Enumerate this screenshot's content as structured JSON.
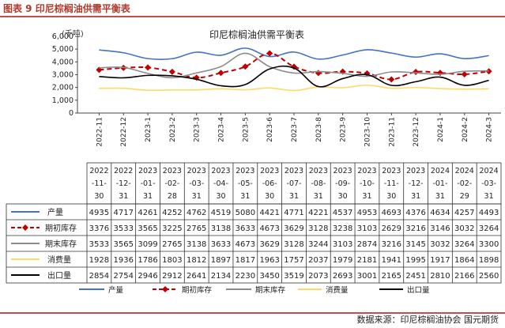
{
  "header": {
    "title": "图表 9 印尼棕榈油供需平衡表"
  },
  "source": "数据来源：印尼棕榈油协会  国元期货",
  "chart_data": {
    "type": "line",
    "title": "印尼棕榈油供需平衡表",
    "unit_label": "(千吨)",
    "ylim": [
      0,
      6000
    ],
    "yticks": [
      "0",
      "1,000",
      "2,000",
      "3,000",
      "4,000",
      "5,000",
      "6,000"
    ],
    "categories": [
      "2022-11",
      "2022-12",
      "2023-1",
      "2023-2",
      "2023-3",
      "2023-4",
      "2023-5",
      "2023-6",
      "2023-7",
      "2023-8",
      "2023-9",
      "2023-10",
      "2023-11",
      "2023-12",
      "2024-1",
      "2024-2",
      "2024-3"
    ],
    "table_headers": [
      [
        "2022",
        "-11-",
        "30"
      ],
      [
        "2022",
        "-12-",
        "31"
      ],
      [
        "2023",
        "-01-",
        "31"
      ],
      [
        "2023",
        "-02-",
        "28"
      ],
      [
        "2023",
        "-03-",
        "31"
      ],
      [
        "2023",
        "-04-",
        "30"
      ],
      [
        "2023",
        "-05-",
        "31"
      ],
      [
        "2023",
        "-06-",
        "30"
      ],
      [
        "2023",
        "-07-",
        "31"
      ],
      [
        "2023",
        "-08-",
        "31"
      ],
      [
        "2023",
        "-09-",
        "30"
      ],
      [
        "2023",
        "-10-",
        "31"
      ],
      [
        "2023",
        "-11-",
        "30"
      ],
      [
        "2023",
        "-12-",
        "31"
      ],
      [
        "2024",
        "-01-",
        "31"
      ],
      [
        "2024",
        "-02-",
        "29"
      ],
      [
        "2024",
        "-03-",
        "31"
      ]
    ],
    "series": [
      {
        "name": "产量",
        "color": "#4472c4",
        "style": "solid",
        "values": [
          4935,
          4717,
          4261,
          4252,
          4762,
          4519,
          5080,
          4421,
          4771,
          4221,
          4537,
          4953,
          4693,
          4376,
          4634,
          4257,
          4493
        ]
      },
      {
        "name": "期初库存",
        "color": "#c00000",
        "style": "dash-diamond",
        "values": [
          3376,
          3533,
          3565,
          3225,
          2765,
          3138,
          3633,
          4673,
          3629,
          3128,
          3238,
          3103,
          2629,
          3216,
          3146,
          3032,
          3264
        ]
      },
      {
        "name": "期末库存",
        "color": "#8c8c8c",
        "style": "solid",
        "values": [
          3533,
          3565,
          3099,
          2765,
          3138,
          3633,
          4673,
          3629,
          3128,
          3244,
          3103,
          2874,
          3216,
          3145,
          3032,
          3264,
          3300
        ]
      },
      {
        "name": "消费量",
        "color": "#ffd966",
        "style": "solid",
        "values": [
          1928,
          1936,
          1786,
          1803,
          1812,
          1897,
          1817,
          1963,
          1757,
          2037,
          1979,
          2181,
          1941,
          1995,
          1917,
          1864,
          1898
        ]
      },
      {
        "name": "出口量",
        "color": "#000000",
        "style": "solid",
        "values": [
          2854,
          2754,
          2946,
          2912,
          2641,
          2134,
          2230,
          3450,
          3519,
          2073,
          2693,
          3001,
          2165,
          2451,
          2810,
          2166,
          2560
        ]
      }
    ],
    "legend_position": "bottom",
    "grid": false
  }
}
